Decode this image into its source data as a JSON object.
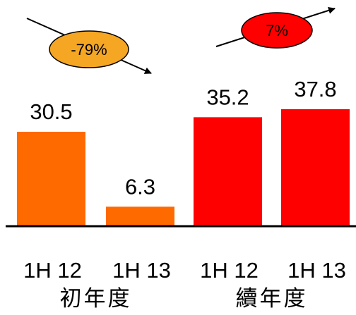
{
  "chart_data": {
    "type": "bar",
    "categories": [
      "1H 12",
      "1H 13",
      "1H 12",
      "1H 13"
    ],
    "values": [
      30.5,
      6.3,
      35.2,
      37.8
    ],
    "value_labels": [
      "30.5",
      "6.3",
      "35.2",
      "37.8"
    ],
    "groups": [
      {
        "label": "初年度",
        "categories": [
          0,
          1
        ]
      },
      {
        "label": "續年度",
        "categories": [
          2,
          3
        ]
      }
    ],
    "bar_colors": [
      "#ff6a00",
      "#ff6a00",
      "#ff0000",
      "#ff0000"
    ],
    "annotations": [
      {
        "text": "-79%",
        "from_category": 0,
        "to_category": 1,
        "fill": "#f5a623",
        "direction": "down"
      },
      {
        "text": "7%",
        "from_category": 2,
        "to_category": 3,
        "fill": "#ff0000",
        "direction": "up"
      }
    ],
    "title": "",
    "xlabel": "",
    "ylabel": "",
    "ylim": [
      0,
      40
    ],
    "grid": false,
    "legend": "none"
  }
}
